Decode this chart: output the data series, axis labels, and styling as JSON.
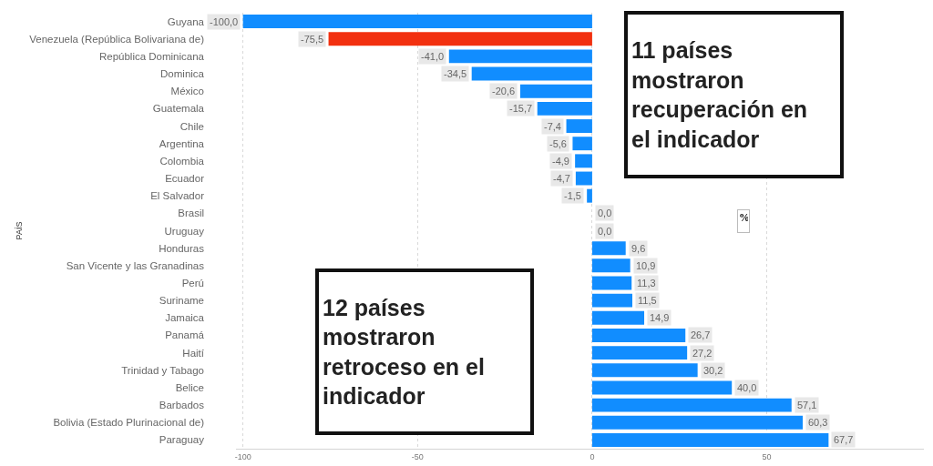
{
  "chart_data": {
    "type": "bar",
    "orientation": "horizontal",
    "ylabel": "PAÍS",
    "categories": [
      "Guyana",
      "Venezuela (República Bolivariana de)",
      "República Dominicana",
      "Dominica",
      "México",
      "Guatemala",
      "Chile",
      "Argentina",
      "Colombia",
      "Ecuador",
      "El Salvador",
      "Brasil",
      "Uruguay",
      "Honduras",
      "San Vicente y las Granadinas",
      "Perú",
      "Suriname",
      "Jamaica",
      "Panamá",
      "Haití",
      "Trinidad y Tabago",
      "Belice",
      "Barbados",
      "Bolivia (Estado Plurinacional de)",
      "Paraguay"
    ],
    "values": [
      -100.0,
      -75.5,
      -41.0,
      -34.5,
      -20.6,
      -15.7,
      -7.4,
      -5.6,
      -4.9,
      -4.7,
      -1.5,
      0.0,
      0.0,
      9.6,
      10.9,
      11.3,
      11.5,
      14.9,
      26.7,
      27.2,
      30.2,
      40.0,
      57.1,
      60.3,
      67.7
    ],
    "value_labels": [
      "-100,0",
      "-75,5",
      "-41,0",
      "-34,5",
      "-20,6",
      "-15,7",
      "-7,4",
      "-5,6",
      "-4,9",
      "-4,7",
      "-1,5",
      "0,0",
      "0,0",
      "9,6",
      "10,9",
      "11,3",
      "11,5",
      "14,9",
      "26,7",
      "27,2",
      "30,2",
      "40,0",
      "57,1",
      "60,3",
      "67,7"
    ],
    "colors": [
      "#118dff",
      "#f2300f",
      "#118dff",
      "#118dff",
      "#118dff",
      "#118dff",
      "#118dff",
      "#118dff",
      "#118dff",
      "#118dff",
      "#118dff",
      "#118dff",
      "#118dff",
      "#118dff",
      "#118dff",
      "#118dff",
      "#118dff",
      "#118dff",
      "#118dff",
      "#118dff",
      "#118dff",
      "#118dff",
      "#118dff",
      "#118dff",
      "#118dff"
    ],
    "xlim": [
      -102,
      95
    ],
    "xticks": [
      -100,
      -50,
      0,
      50
    ],
    "grid": "x",
    "annotations": [
      "11 países\nmostraron\nrecuperación en\nel indicador",
      "12 países\nmostraron\nretroceso en el\nindicador",
      "%"
    ]
  }
}
